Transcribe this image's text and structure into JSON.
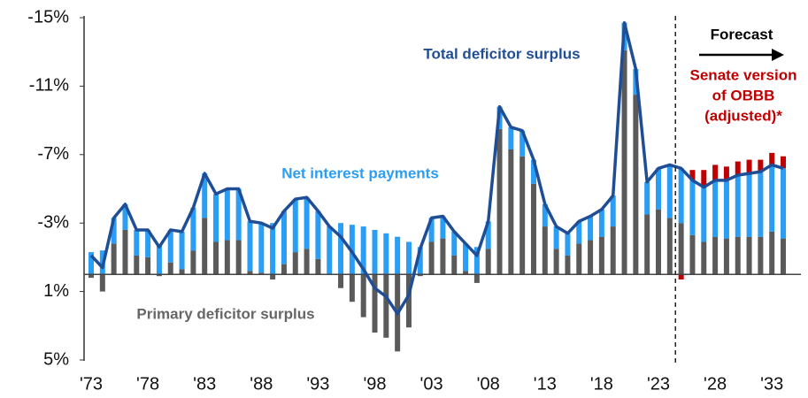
{
  "chart_data": {
    "type": "bar",
    "stacked": true,
    "categories": [
      "'73",
      null,
      null,
      null,
      null,
      "'78",
      null,
      null,
      null,
      null,
      "'83",
      null,
      null,
      null,
      null,
      "'88",
      null,
      null,
      null,
      null,
      "'93",
      null,
      null,
      null,
      null,
      "'98",
      null,
      null,
      null,
      null,
      "'03",
      null,
      null,
      null,
      null,
      "'08",
      null,
      null,
      null,
      null,
      "'13",
      null,
      null,
      null,
      null,
      "'18",
      null,
      null,
      null,
      null,
      "'23",
      null,
      null,
      null,
      null,
      "'28",
      null,
      null,
      null,
      null,
      "'33",
      null
    ],
    "ylim": [
      -15,
      5
    ],
    "yticks": [
      {
        "value": -15,
        "label": "-15%"
      },
      {
        "value": -11,
        "label": "-11%"
      },
      {
        "value": -7,
        "label": "-7%"
      },
      {
        "value": -3,
        "label": "-3%"
      },
      {
        "value": 1,
        "label": "1%"
      },
      {
        "value": 5,
        "label": "5%"
      }
    ],
    "series": [
      {
        "name": "Primary deficitor surplus",
        "color": "#5a5a5a",
        "values": [
          0.2,
          1.0,
          -1.8,
          -2.6,
          -1.1,
          -1.0,
          0.1,
          -0.7,
          -0.3,
          -1.4,
          -3.3,
          -1.9,
          -2.0,
          -2.0,
          -0.2,
          -0.1,
          0.3,
          -0.6,
          -1.3,
          -1.5,
          -0.9,
          0,
          0.8,
          1.6,
          2.5,
          3.4,
          3.7,
          4.5,
          3.1,
          0.1,
          -1.9,
          -2.1,
          -1.1,
          -0.2,
          0.5,
          -1.5,
          -8.5,
          -7.3,
          -6.9,
          -5.3,
          -2.8,
          -1.5,
          -1.1,
          -1.8,
          -2.0,
          -2.2,
          -2.8,
          -13.1,
          -10.5,
          -3.5,
          -3.8,
          -3.3,
          -3.0,
          -2.3,
          -1.9,
          -2.2,
          -2.1,
          -2.2,
          -2.2,
          -2.2,
          -2.5,
          -2.1
        ]
      },
      {
        "name": "Net interest payments",
        "color": "#2a9df4",
        "values": [
          -1.3,
          -1.4,
          -1.5,
          -1.5,
          -1.5,
          -1.6,
          -1.7,
          -1.9,
          -2.2,
          -2.5,
          -2.6,
          -2.8,
          -3.0,
          -3.0,
          -2.9,
          -2.9,
          -3.0,
          -3.1,
          -3.1,
          -3.0,
          -2.8,
          -2.8,
          -3.0,
          -2.9,
          -2.8,
          -2.6,
          -2.4,
          -2.2,
          -1.9,
          -1.6,
          -1.4,
          -1.3,
          -1.4,
          -1.6,
          -1.6,
          -1.6,
          -1.3,
          -1.3,
          -1.5,
          -1.4,
          -1.3,
          -1.3,
          -1.3,
          -1.3,
          -1.4,
          -1.6,
          -1.8,
          -1.6,
          -1.5,
          -1.9,
          -2.4,
          -3.1,
          -3.2,
          -3.2,
          -3.2,
          -3.3,
          -3.4,
          -3.6,
          -3.7,
          -3.8,
          -3.9,
          -4.1
        ]
      },
      {
        "name": "Senate version of OBBB (adjusted)*",
        "color": "#c00000",
        "values": [
          null,
          null,
          null,
          null,
          null,
          null,
          null,
          null,
          null,
          null,
          null,
          null,
          null,
          null,
          null,
          null,
          null,
          null,
          null,
          null,
          null,
          null,
          null,
          null,
          null,
          null,
          null,
          null,
          null,
          null,
          null,
          null,
          null,
          null,
          null,
          null,
          null,
          null,
          null,
          null,
          null,
          null,
          null,
          null,
          null,
          null,
          null,
          null,
          null,
          null,
          null,
          null,
          0.3,
          -0.6,
          -1.0,
          -0.9,
          -0.8,
          -0.8,
          -0.8,
          -0.7,
          -0.7,
          -0.7
        ]
      },
      {
        "name": "Total deficitor surplus",
        "type": "line",
        "color": "#1f4e96",
        "values": [
          -1.1,
          -0.4,
          -3.3,
          -4.1,
          -2.6,
          -2.6,
          -1.6,
          -2.6,
          -2.5,
          -3.9,
          -5.9,
          -4.7,
          -5.0,
          -5.0,
          -3.1,
          -3.0,
          -2.7,
          -3.7,
          -4.4,
          -4.5,
          -3.7,
          -2.8,
          -2.2,
          -1.3,
          -0.3,
          0.8,
          1.3,
          2.3,
          1.2,
          -1.5,
          -3.3,
          -3.4,
          -2.5,
          -1.8,
          -1.1,
          -3.1,
          -9.8,
          -8.6,
          -8.4,
          -6.7,
          -4.1,
          -2.8,
          -2.4,
          -3.1,
          -3.4,
          -3.8,
          -4.6,
          -14.7,
          -12.0,
          -5.4,
          -6.2,
          -6.4,
          -6.2,
          -5.5,
          -5.1,
          -5.5,
          -5.5,
          -5.8,
          -5.9,
          -6.0,
          -6.4,
          -6.2
        ]
      }
    ],
    "annotations": [
      "Total deficitor surplus",
      "Net interest payments",
      "Primary deficitor surplus",
      "Forecast",
      "Senate version",
      "of OBBB",
      "(adjusted)*"
    ]
  }
}
